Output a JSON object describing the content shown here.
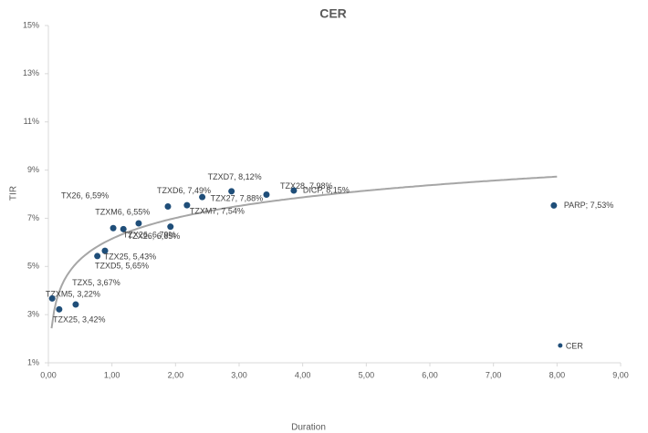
{
  "chart_data": {
    "type": "scatter",
    "title": "CER",
    "xlabel": "Duration",
    "ylabel": "TIR",
    "color": "#1f4e79",
    "x": [
      0.17,
      0.43,
      0.06,
      0.89,
      0.77,
      1.02,
      1.18,
      1.42,
      1.92,
      1.88,
      2.18,
      2.42,
      2.88,
      3.43,
      3.86,
      7.95,
      8.05
    ],
    "values": [
      3.22,
      3.42,
      3.67,
      5.65,
      5.43,
      6.59,
      6.55,
      6.79,
      6.65,
      7.49,
      7.54,
      7.88,
      8.12,
      7.98,
      8.15,
      7.53,
      1.72
    ],
    "labels": [
      "TZXM5, 3,22%",
      "TZX25, 3,42%",
      "TZX5, 3,67%",
      "TZXD5, 5,65%",
      "TZX25, 5,43%",
      "TX26, 6,59%",
      "TZXM6, 6,55%",
      "TZX26, 6,79%",
      "TZX26, 6,65%",
      "TZXD6, 7,49%",
      "TZXM7, 7,54%",
      "TZX27, 7,88%",
      "TZXD7, 8,12%",
      "TZX28, 7,98%",
      "DICP, 8,15%",
      "PARP; 7,53%",
      "CER"
    ],
    "trendline": {
      "type": "log",
      "intercept": 6.15,
      "slope": 1.24,
      "xrange": [
        0.05,
        8
      ],
      "color": "#a6a6a6"
    },
    "xlim": [
      0,
      9
    ],
    "xticks": [
      {
        "value": 0,
        "label": "0,00"
      },
      {
        "value": 1,
        "label": "1,00"
      },
      {
        "value": 2,
        "label": "2,00"
      },
      {
        "value": 3,
        "label": "3,00"
      },
      {
        "value": 4,
        "label": "4,00"
      },
      {
        "value": 5,
        "label": "5,00"
      },
      {
        "value": 6,
        "label": "6,00"
      },
      {
        "value": 7,
        "label": "7,00"
      },
      {
        "value": 8,
        "label": "8,00"
      },
      {
        "value": 9,
        "label": "9,00"
      }
    ],
    "ylim": [
      1,
      15
    ],
    "yticks": [
      {
        "value": 1,
        "label": "1%"
      },
      {
        "value": 3,
        "label": "3%"
      },
      {
        "value": 5,
        "label": "5%"
      },
      {
        "value": 7,
        "label": "7%"
      },
      {
        "value": 9,
        "label": "9%"
      },
      {
        "value": 11,
        "label": "11%"
      },
      {
        "value": 13,
        "label": "13%"
      },
      {
        "value": 15,
        "label": "15%"
      }
    ],
    "grid": false
  }
}
